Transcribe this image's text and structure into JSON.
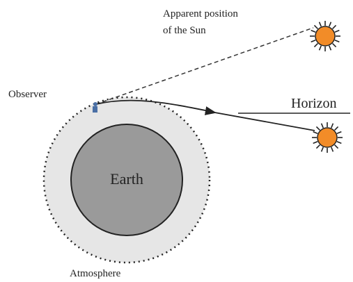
{
  "labels": {
    "apparent_sun": [
      "Apparent position",
      "of the Sun"
    ],
    "observer": "Observer",
    "horizon": "Horizon",
    "earth": "Earth",
    "atmosphere": "Atmosphere"
  }
}
